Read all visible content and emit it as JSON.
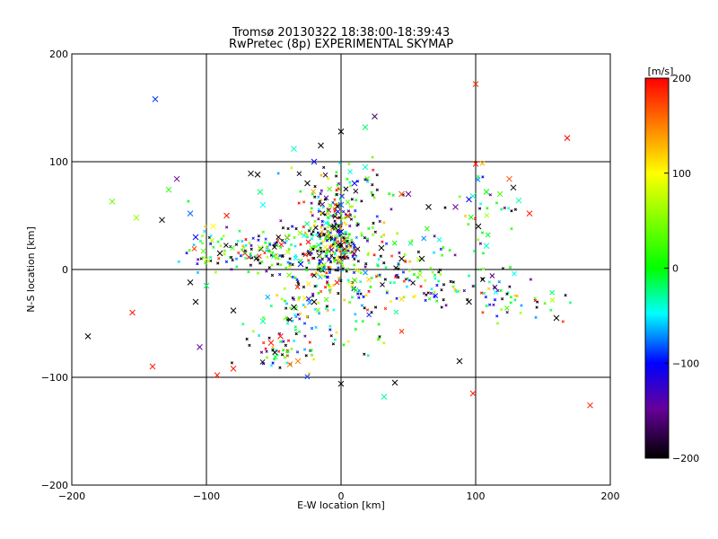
{
  "chart_data": {
    "type": "scatter",
    "title": "Tromsø 20130322 18:38:00-18:39:43",
    "subtitle": "RwPretec (8p) EXPERIMENTAL SKYMAP",
    "xlabel": "E-W location [km]",
    "ylabel": "N-S location [km]",
    "xlim": [
      -200,
      200
    ],
    "ylim": [
      -200,
      200
    ],
    "xticks": [
      -200,
      -100,
      0,
      100,
      200
    ],
    "yticks": [
      -200,
      -100,
      0,
      100,
      200
    ],
    "grid": true,
    "colorbar": {
      "label": "[m/s]",
      "min": -200,
      "max": 200,
      "ticks": [
        200,
        100,
        0,
        -100,
        -200
      ],
      "colors": [
        "#ff0000",
        "#ffff00",
        "#00ff00",
        "#00ffff",
        "#0000ff",
        "#660099",
        "#000000"
      ]
    },
    "large_points": [
      {
        "x": -138,
        "y": 158,
        "v": -90
      },
      {
        "x": 100,
        "y": 172,
        "v": 180
      },
      {
        "x": 168,
        "y": 122,
        "v": 200
      },
      {
        "x": 25,
        "y": 142,
        "v": -170
      },
      {
        "x": 0,
        "y": 128,
        "v": -200
      },
      {
        "x": -15,
        "y": 115,
        "v": -200
      },
      {
        "x": -35,
        "y": 112,
        "v": -40
      },
      {
        "x": 18,
        "y": 132,
        "v": -20
      },
      {
        "x": -112,
        "y": 52,
        "v": -80
      },
      {
        "x": -170,
        "y": 63,
        "v": 40
      },
      {
        "x": -152,
        "y": 48,
        "v": 60
      },
      {
        "x": -133,
        "y": 46,
        "v": -200
      },
      {
        "x": -128,
        "y": 74,
        "v": 10
      },
      {
        "x": -122,
        "y": 84,
        "v": -150
      },
      {
        "x": -108,
        "y": 30,
        "v": -100
      },
      {
        "x": -108,
        "y": -30,
        "v": -200
      },
      {
        "x": -112,
        "y": -12,
        "v": -200
      },
      {
        "x": -188,
        "y": -62,
        "v": -200
      },
      {
        "x": -155,
        "y": -40,
        "v": 190
      },
      {
        "x": -140,
        "y": -90,
        "v": 190
      },
      {
        "x": -105,
        "y": -72,
        "v": -150
      },
      {
        "x": -92,
        "y": -98,
        "v": 190
      },
      {
        "x": -80,
        "y": -92,
        "v": 190
      },
      {
        "x": -62,
        "y": 88,
        "v": -200
      },
      {
        "x": -67,
        "y": 89,
        "v": -200
      },
      {
        "x": -58,
        "y": 60,
        "v": -50
      },
      {
        "x": -60,
        "y": 72,
        "v": -20
      },
      {
        "x": 100,
        "y": 98,
        "v": 190
      },
      {
        "x": 128,
        "y": 76,
        "v": -200
      },
      {
        "x": 125,
        "y": 84,
        "v": 170
      },
      {
        "x": 95,
        "y": 65,
        "v": -100
      },
      {
        "x": 98,
        "y": 68,
        "v": -40
      },
      {
        "x": 132,
        "y": 64,
        "v": -30
      },
      {
        "x": 140,
        "y": 52,
        "v": 190
      },
      {
        "x": 118,
        "y": 70,
        "v": 30
      },
      {
        "x": 108,
        "y": 72,
        "v": 0
      },
      {
        "x": 85,
        "y": 58,
        "v": -150
      },
      {
        "x": 65,
        "y": 58,
        "v": -200
      },
      {
        "x": 50,
        "y": 70,
        "v": -150
      },
      {
        "x": 45,
        "y": 70,
        "v": 170
      },
      {
        "x": 102,
        "y": 40,
        "v": -200
      },
      {
        "x": 108,
        "y": 22,
        "v": -40
      },
      {
        "x": 160,
        "y": -45,
        "v": -200
      },
      {
        "x": 185,
        "y": -126,
        "v": 190
      },
      {
        "x": 98,
        "y": -115,
        "v": 190
      },
      {
        "x": 95,
        "y": -30,
        "v": -200
      },
      {
        "x": 88,
        "y": -85,
        "v": -200
      },
      {
        "x": 40,
        "y": -105,
        "v": -200
      },
      {
        "x": 32,
        "y": -118,
        "v": -30
      },
      {
        "x": 0,
        "y": -106,
        "v": -200
      },
      {
        "x": -32,
        "y": -85,
        "v": 150
      },
      {
        "x": -38,
        "y": -88,
        "v": 150
      },
      {
        "x": 30,
        "y": 20,
        "v": -200
      },
      {
        "x": 5,
        "y": 50,
        "v": 190
      },
      {
        "x": -5,
        "y": 40,
        "v": -200
      },
      {
        "x": 0,
        "y": 35,
        "v": -100
      },
      {
        "x": -10,
        "y": 30,
        "v": 20
      },
      {
        "x": 10,
        "y": -10,
        "v": 30
      },
      {
        "x": -20,
        "y": -30,
        "v": -200
      },
      {
        "x": -85,
        "y": 50,
        "v": 190
      },
      {
        "x": -95,
        "y": 40,
        "v": 100
      },
      {
        "x": -90,
        "y": 15,
        "v": -200
      },
      {
        "x": -60,
        "y": 20,
        "v": 60
      },
      {
        "x": -40,
        "y": 30,
        "v": 60
      },
      {
        "x": -30,
        "y": 5,
        "v": -100
      },
      {
        "x": 60,
        "y": 10,
        "v": -200
      },
      {
        "x": 45,
        "y": 10,
        "v": -200
      },
      {
        "x": -100,
        "y": -15,
        "v": -20
      },
      {
        "x": -80,
        "y": -38,
        "v": -200
      },
      {
        "x": -58,
        "y": -48,
        "v": -30
      },
      {
        "x": -45,
        "y": -62,
        "v": 190
      },
      {
        "x": -52,
        "y": -68,
        "v": 190
      },
      {
        "x": -35,
        "y": -35,
        "v": -200
      },
      {
        "x": 0,
        "y": 60,
        "v": -80
      },
      {
        "x": 10,
        "y": 80,
        "v": -100
      },
      {
        "x": 18,
        "y": 95,
        "v": -40
      },
      {
        "x": -25,
        "y": 80,
        "v": -200
      },
      {
        "x": -20,
        "y": 100,
        "v": -100
      }
    ],
    "clusters": [
      {
        "cx": -5,
        "cy": 25,
        "sx": 12,
        "sy": 22,
        "n": 320
      },
      {
        "cx": -55,
        "cy": 18,
        "sx": 25,
        "sy": 10,
        "n": 140
      },
      {
        "cx": -30,
        "cy": -30,
        "sx": 14,
        "sy": 18,
        "n": 70
      },
      {
        "cx": -45,
        "cy": -75,
        "sx": 14,
        "sy": 10,
        "n": 55
      },
      {
        "cx": 40,
        "cy": 10,
        "sx": 30,
        "sy": 15,
        "n": 80
      },
      {
        "cx": 80,
        "cy": -15,
        "sx": 30,
        "sy": 10,
        "n": 60
      },
      {
        "cx": 130,
        "cy": -30,
        "sx": 25,
        "sy": 10,
        "n": 40
      },
      {
        "cx": 0,
        "cy": 75,
        "sx": 20,
        "sy": 15,
        "n": 60
      },
      {
        "cx": 105,
        "cy": 55,
        "sx": 15,
        "sy": 20,
        "n": 25
      },
      {
        "cx": -100,
        "cy": 20,
        "sx": 10,
        "sy": 12,
        "n": 25
      },
      {
        "cx": 15,
        "cy": -35,
        "sx": 15,
        "sy": 20,
        "n": 40
      }
    ],
    "seed": 7
  }
}
